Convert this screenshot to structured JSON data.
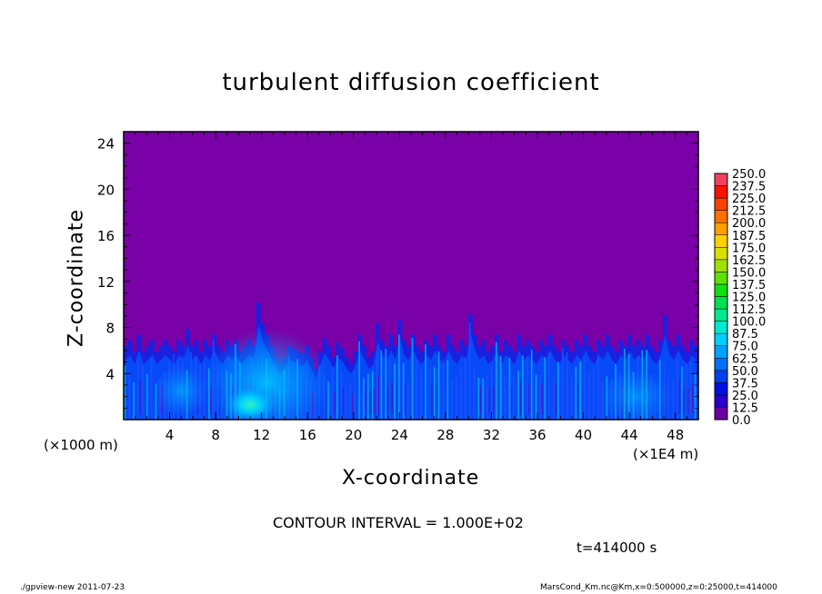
{
  "chart_data": {
    "type": "heatmap",
    "title": "turbulent diffusion coefficient",
    "xlabel": "X-coordinate",
    "ylabel": "Z-coordinate",
    "x_unit_label": "(×1E4 m)",
    "y_unit_label": "(×1000 m)",
    "x_ticks": [
      "4",
      "8",
      "12",
      "16",
      "20",
      "24",
      "28",
      "32",
      "36",
      "40",
      "44",
      "48"
    ],
    "y_ticks": [
      "4",
      "8",
      "12",
      "16",
      "20",
      "24"
    ],
    "xlim": [
      0,
      50
    ],
    "ylim": [
      0,
      25
    ],
    "colorbar_levels": [
      "0.0",
      "12.5",
      "25.0",
      "37.5",
      "50.0",
      "62.5",
      "75.0",
      "87.5",
      "100.0",
      "112.5",
      "125.0",
      "137.5",
      "150.0",
      "162.5",
      "175.0",
      "187.5",
      "200.0",
      "212.5",
      "225.0",
      "237.5",
      "250.0"
    ],
    "colorbar_colors": [
      "#6a00a0",
      "#2a00c8",
      "#0010e0",
      "#0040f0",
      "#0070ff",
      "#00a0ff",
      "#00d0ff",
      "#00e8d0",
      "#00e890",
      "#00e050",
      "#10e010",
      "#60e000",
      "#a0e000",
      "#d8e000",
      "#ffd000",
      "#ffa000",
      "#ff7000",
      "#ff4000",
      "#ff1000",
      "#f04060"
    ],
    "background_color": "#7a00a8",
    "turbulent_layer_top": [
      6.5,
      7,
      6,
      7.5,
      6,
      6.5,
      7,
      6,
      6.5,
      7,
      6.5,
      6,
      7,
      6.5,
      8,
      6.5,
      7,
      6,
      7,
      6.5,
      7.5,
      6.5,
      6,
      7,
      6.5,
      7,
      6,
      6.5,
      7,
      6.5,
      10.3,
      8.5,
      7.5,
      6.5,
      5.5,
      5,
      5.5,
      6.5,
      6.3,
      6,
      5.8,
      6.5,
      5.5,
      4.5,
      6,
      7.2,
      6.5,
      5.5,
      6.8,
      6.3,
      5.5,
      5,
      6,
      7.5,
      6.5,
      5.5,
      6,
      8.5,
      7,
      6.5,
      7.5,
      6.5,
      8.8,
      7,
      6.5,
      7.5,
      6.5,
      6,
      7,
      6.5,
      7.5,
      6.5,
      6,
      7.5,
      6.5,
      6,
      7,
      6.5,
      9.3,
      7.5,
      6.5,
      7,
      6,
      6.5,
      7.5,
      6,
      7,
      6.5,
      6,
      7.5,
      6.5,
      7,
      6.5,
      6,
      7,
      6.5,
      7.5,
      6.5,
      6,
      7,
      6.5,
      6,
      7,
      6.5,
      7.5,
      6.5,
      6,
      7,
      6.5,
      7.5,
      6.5,
      6,
      7,
      6.5,
      7.5,
      6.5,
      7,
      6.5,
      7.5,
      6.5,
      6,
      7,
      9.2,
      7,
      6.5,
      7.5,
      6.5,
      6,
      7,
      6.5
    ]
  },
  "contour_interval": "CONTOUR INTERVAL = 1.000E+02",
  "time_label": "t=414000 s",
  "footer_left": "./gpview-new   2011-07-23",
  "footer_right": "MarsCond_Km.nc@Km,x=0:500000,z=0:25000,t=414000"
}
